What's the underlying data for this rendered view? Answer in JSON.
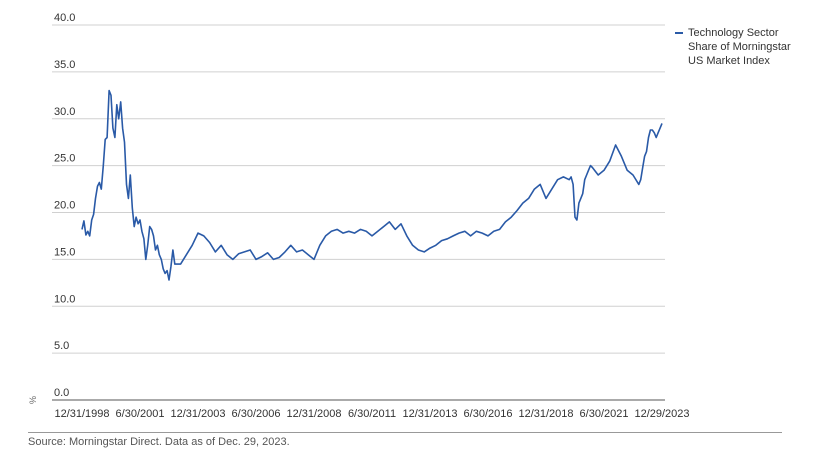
{
  "chart_data": {
    "type": "line",
    "title": "",
    "xlabel": "",
    "ylabel": "%",
    "ylim": [
      0,
      40
    ],
    "yticks": [
      "40.0",
      "35.0",
      "30.0",
      "25.0",
      "20.0",
      "15.0",
      "10.0",
      "5.0",
      "0.0"
    ],
    "xticks": [
      "12/31/1998",
      "6/30/2001",
      "12/31/2003",
      "6/30/2006",
      "12/31/2008",
      "6/30/2011",
      "12/31/2013",
      "6/30/2016",
      "12/31/2018",
      "6/30/2021",
      "12/29/2023"
    ],
    "grid": true,
    "legend_position": "top-right",
    "series": [
      {
        "name": "Technology Sector Share of Morningstar US Market Index",
        "color": "#2a5aa7",
        "points": [
          [
            "1998-12",
            18.2
          ],
          [
            "1999-01",
            19.1
          ],
          [
            "1999-02",
            17.6
          ],
          [
            "1999-03",
            18.0
          ],
          [
            "1999-04",
            17.5
          ],
          [
            "1999-05",
            19.2
          ],
          [
            "1999-06",
            19.8
          ],
          [
            "1999-07",
            21.5
          ],
          [
            "1999-08",
            22.8
          ],
          [
            "1999-09",
            23.2
          ],
          [
            "1999-10",
            22.5
          ],
          [
            "1999-11",
            25.0
          ],
          [
            "1999-12",
            27.8
          ],
          [
            "2000-01",
            28.0
          ],
          [
            "2000-02",
            33.0
          ],
          [
            "2000-03",
            32.5
          ],
          [
            "2000-04",
            29.0
          ],
          [
            "2000-05",
            28.0
          ],
          [
            "2000-06",
            31.5
          ],
          [
            "2000-07",
            30.0
          ],
          [
            "2000-08",
            31.8
          ],
          [
            "2000-09",
            29.0
          ],
          [
            "2000-10",
            27.5
          ],
          [
            "2000-11",
            23.0
          ],
          [
            "2000-12",
            21.5
          ],
          [
            "2001-01",
            24.0
          ],
          [
            "2001-02",
            20.5
          ],
          [
            "2001-03",
            18.5
          ],
          [
            "2001-04",
            19.5
          ],
          [
            "2001-05",
            18.8
          ],
          [
            "2001-06",
            19.2
          ],
          [
            "2001-07",
            18.0
          ],
          [
            "2001-08",
            17.2
          ],
          [
            "2001-09",
            15.0
          ],
          [
            "2001-10",
            16.5
          ],
          [
            "2001-11",
            18.5
          ],
          [
            "2001-12",
            18.2
          ],
          [
            "2002-01",
            17.5
          ],
          [
            "2002-02",
            16.0
          ],
          [
            "2002-03",
            16.5
          ],
          [
            "2002-04",
            15.5
          ],
          [
            "2002-05",
            15.0
          ],
          [
            "2002-06",
            14.0
          ],
          [
            "2002-07",
            13.5
          ],
          [
            "2002-08",
            13.8
          ],
          [
            "2002-09",
            12.8
          ],
          [
            "2002-10",
            14.2
          ],
          [
            "2002-11",
            16.0
          ],
          [
            "2002-12",
            14.5
          ],
          [
            "2003-03",
            14.5
          ],
          [
            "2003-06",
            15.5
          ],
          [
            "2003-09",
            16.5
          ],
          [
            "2003-12",
            17.8
          ],
          [
            "2004-03",
            17.5
          ],
          [
            "2004-06",
            16.8
          ],
          [
            "2004-09",
            15.8
          ],
          [
            "2004-12",
            16.5
          ],
          [
            "2005-03",
            15.5
          ],
          [
            "2005-06",
            15.0
          ],
          [
            "2005-09",
            15.6
          ],
          [
            "2005-12",
            15.8
          ],
          [
            "2006-03",
            16.0
          ],
          [
            "2006-06",
            15.0
          ],
          [
            "2006-09",
            15.3
          ],
          [
            "2006-12",
            15.7
          ],
          [
            "2007-03",
            15.0
          ],
          [
            "2007-06",
            15.2
          ],
          [
            "2007-09",
            15.8
          ],
          [
            "2007-12",
            16.5
          ],
          [
            "2008-03",
            15.8
          ],
          [
            "2008-06",
            16.0
          ],
          [
            "2008-09",
            15.5
          ],
          [
            "2008-12",
            15.0
          ],
          [
            "2009-03",
            16.5
          ],
          [
            "2009-06",
            17.5
          ],
          [
            "2009-09",
            18.0
          ],
          [
            "2009-12",
            18.2
          ],
          [
            "2010-03",
            17.8
          ],
          [
            "2010-06",
            18.0
          ],
          [
            "2010-09",
            17.8
          ],
          [
            "2010-12",
            18.2
          ],
          [
            "2011-03",
            18.0
          ],
          [
            "2011-06",
            17.5
          ],
          [
            "2011-09",
            18.0
          ],
          [
            "2011-12",
            18.5
          ],
          [
            "2012-03",
            19.0
          ],
          [
            "2012-06",
            18.2
          ],
          [
            "2012-09",
            18.8
          ],
          [
            "2012-12",
            17.5
          ],
          [
            "2013-03",
            16.5
          ],
          [
            "2013-06",
            16.0
          ],
          [
            "2013-09",
            15.8
          ],
          [
            "2013-12",
            16.2
          ],
          [
            "2014-03",
            16.5
          ],
          [
            "2014-06",
            17.0
          ],
          [
            "2014-09",
            17.2
          ],
          [
            "2014-12",
            17.5
          ],
          [
            "2015-03",
            17.8
          ],
          [
            "2015-06",
            18.0
          ],
          [
            "2015-09",
            17.5
          ],
          [
            "2015-12",
            18.0
          ],
          [
            "2016-03",
            17.8
          ],
          [
            "2016-06",
            17.5
          ],
          [
            "2016-09",
            18.0
          ],
          [
            "2016-12",
            18.2
          ],
          [
            "2017-03",
            19.0
          ],
          [
            "2017-06",
            19.5
          ],
          [
            "2017-09",
            20.2
          ],
          [
            "2017-12",
            21.0
          ],
          [
            "2018-03",
            21.5
          ],
          [
            "2018-06",
            22.5
          ],
          [
            "2018-09",
            23.0
          ],
          [
            "2018-12",
            21.5
          ],
          [
            "2019-03",
            22.5
          ],
          [
            "2019-06",
            23.5
          ],
          [
            "2019-09",
            23.8
          ],
          [
            "2019-12",
            23.5
          ],
          [
            "2020-01",
            23.8
          ],
          [
            "2020-02",
            23.0
          ],
          [
            "2020-03",
            19.5
          ],
          [
            "2020-04",
            19.2
          ],
          [
            "2020-05",
            21.0
          ],
          [
            "2020-06",
            21.5
          ],
          [
            "2020-07",
            22.0
          ],
          [
            "2020-08",
            23.5
          ],
          [
            "2020-09",
            24.0
          ],
          [
            "2020-10",
            24.5
          ],
          [
            "2020-11",
            25.0
          ],
          [
            "2020-12",
            24.8
          ],
          [
            "2021-03",
            24.0
          ],
          [
            "2021-06",
            24.5
          ],
          [
            "2021-09",
            25.5
          ],
          [
            "2021-12",
            27.2
          ],
          [
            "2022-03",
            26.0
          ],
          [
            "2022-06",
            24.5
          ],
          [
            "2022-09",
            24.0
          ],
          [
            "2022-12",
            23.0
          ],
          [
            "2023-01",
            23.5
          ],
          [
            "2023-02",
            24.8
          ],
          [
            "2023-03",
            26.0
          ],
          [
            "2023-04",
            26.5
          ],
          [
            "2023-05",
            28.0
          ],
          [
            "2023-06",
            28.8
          ],
          [
            "2023-07",
            28.8
          ],
          [
            "2023-08",
            28.5
          ],
          [
            "2023-09",
            28.0
          ],
          [
            "2023-10",
            28.5
          ],
          [
            "2023-11",
            29.0
          ],
          [
            "2023-12",
            29.5
          ]
        ]
      }
    ]
  },
  "source_note": "Source: Morningstar Direct. Data as of Dec. 29, 2023."
}
